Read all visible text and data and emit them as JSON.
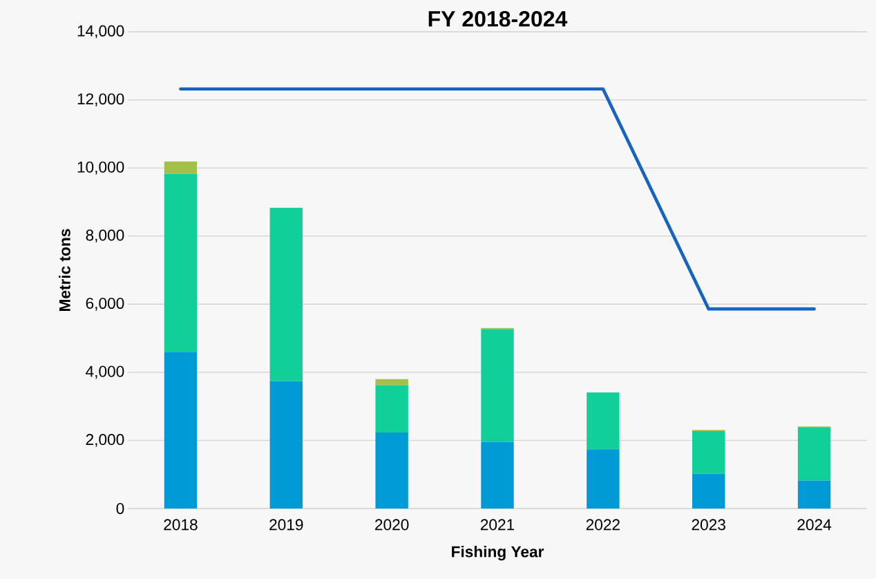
{
  "chart_data": {
    "type": "bar",
    "title": "FY 2018-2024",
    "xlabel": "Fishing Year",
    "ylabel": "Metric tons",
    "categories": [
      "2018",
      "2019",
      "2020",
      "2021",
      "2022",
      "2023",
      "2024"
    ],
    "stacked": true,
    "series": [
      {
        "color": "#009bd6",
        "values": [
          4600,
          3740,
          2230,
          1960,
          1740,
          1020,
          820
        ]
      },
      {
        "color": "#11cf99",
        "values": [
          5230,
          5090,
          1390,
          3310,
          1670,
          1250,
          1570
        ]
      },
      {
        "color": "#a3c14a",
        "values": [
          360,
          0,
          180,
          30,
          0,
          40,
          20
        ]
      },
      {
        "type": "line",
        "color": "#1565c0",
        "values": [
          12320,
          12320,
          12320,
          12320,
          12320,
          5860,
          5860
        ]
      }
    ],
    "ylim": [
      0,
      14000
    ],
    "yticks": [
      {
        "value": 0,
        "label": "0"
      },
      {
        "value": 2000,
        "label": "2,000"
      },
      {
        "value": 4000,
        "label": "4,000"
      },
      {
        "value": 6000,
        "label": "6,000"
      },
      {
        "value": 8000,
        "label": "8,000"
      },
      {
        "value": 10000,
        "label": "10,000"
      },
      {
        "value": 12000,
        "label": "12,000"
      },
      {
        "value": 14000,
        "label": "14,000"
      }
    ],
    "grid": "y"
  }
}
